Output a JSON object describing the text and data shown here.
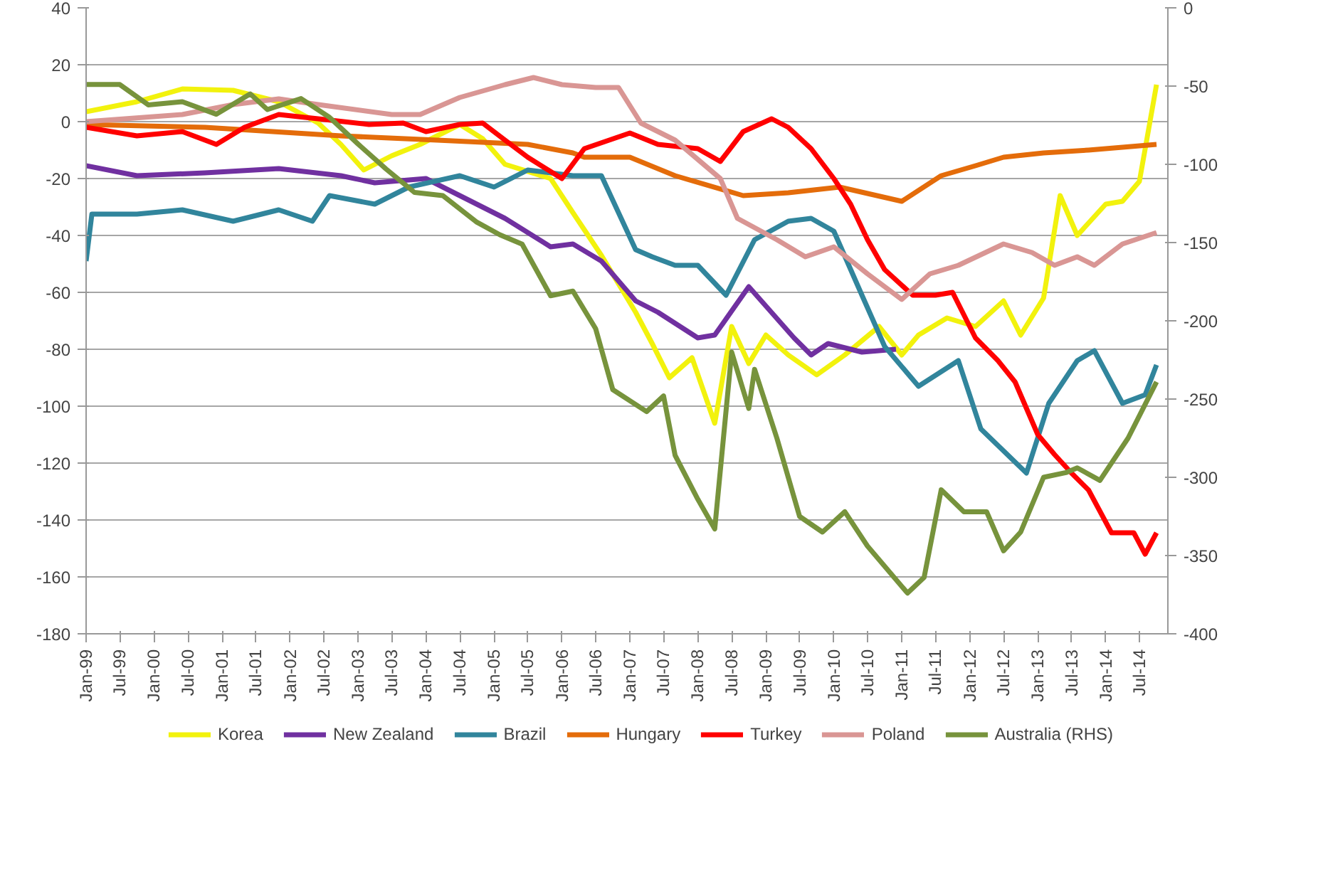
{
  "chart_data": {
    "type": "line",
    "ylim": [
      -180,
      40
    ],
    "yticks": [
      -180,
      -160,
      -140,
      -120,
      -100,
      -80,
      -60,
      -40,
      -20,
      0,
      20,
      40
    ],
    "y2lim": [
      -400,
      0
    ],
    "y2ticks": [
      -400,
      -350,
      -300,
      -250,
      -200,
      -150,
      -100,
      -50,
      0
    ],
    "xlim": [
      "1999-01",
      "2014-12"
    ],
    "xticks": [
      {
        "value": "1999-01",
        "label": "Jan-99"
      },
      {
        "value": "1999-07",
        "label": "Jul-99"
      },
      {
        "value": "2000-01",
        "label": "Jan-00"
      },
      {
        "value": "2000-07",
        "label": "Jul-00"
      },
      {
        "value": "2001-01",
        "label": "Jan-01"
      },
      {
        "value": "2001-07",
        "label": "Jul-01"
      },
      {
        "value": "2002-01",
        "label": "Jan-02"
      },
      {
        "value": "2002-07",
        "label": "Jul-02"
      },
      {
        "value": "2003-01",
        "label": "Jan-03"
      },
      {
        "value": "2003-07",
        "label": "Jul-03"
      },
      {
        "value": "2004-01",
        "label": "Jan-04"
      },
      {
        "value": "2004-07",
        "label": "Jul-04"
      },
      {
        "value": "2005-01",
        "label": "Jan-05"
      },
      {
        "value": "2005-07",
        "label": "Jul-05"
      },
      {
        "value": "2006-01",
        "label": "Jan-06"
      },
      {
        "value": "2006-07",
        "label": "Jul-06"
      },
      {
        "value": "2007-01",
        "label": "Jan-07"
      },
      {
        "value": "2007-07",
        "label": "Jul-07"
      },
      {
        "value": "2008-01",
        "label": "Jan-08"
      },
      {
        "value": "2008-07",
        "label": "Jul-08"
      },
      {
        "value": "2009-01",
        "label": "Jan-09"
      },
      {
        "value": "2009-07",
        "label": "Jul-09"
      },
      {
        "value": "2010-01",
        "label": "Jan-10"
      },
      {
        "value": "2010-07",
        "label": "Jul-10"
      },
      {
        "value": "2011-01",
        "label": "Jan-11"
      },
      {
        "value": "2011-07",
        "label": "Jul-11"
      },
      {
        "value": "2012-01",
        "label": "Jan-12"
      },
      {
        "value": "2012-07",
        "label": "Jul-12"
      },
      {
        "value": "2013-01",
        "label": "Jan-13"
      },
      {
        "value": "2013-07",
        "label": "Jul-13"
      },
      {
        "value": "2014-01",
        "label": "Jan-14"
      },
      {
        "value": "2014-07",
        "label": "Jul-14"
      }
    ],
    "grid": "y",
    "legend": "bottom",
    "line_style": "solid",
    "marker": "none",
    "series": [
      {
        "name": "Korea",
        "color": "#f2f20d",
        "x": [
          "1999-01",
          "1999-10",
          "2000-06",
          "2001-03",
          "2001-11",
          "2002-06",
          "2002-10",
          "2003-02",
          "2003-07",
          "2003-12",
          "2004-07",
          "2004-11",
          "2005-03",
          "2005-11",
          "2006-03",
          "2006-08",
          "2007-02",
          "2007-05",
          "2007-08",
          "2007-12",
          "2008-04",
          "2008-07",
          "2008-10",
          "2009-01",
          "2009-05",
          "2009-10",
          "2010-03",
          "2010-09",
          "2011-01",
          "2011-04",
          "2011-09",
          "2012-02",
          "2012-07",
          "2012-10",
          "2013-02",
          "2013-05",
          "2013-08",
          "2014-01",
          "2014-04",
          "2014-07",
          "2014-10"
        ],
        "values": [
          3.5,
          7,
          11.5,
          11,
          7,
          -0.5,
          -8,
          -17,
          -12,
          -8,
          -1,
          -6,
          -15,
          -20,
          -32,
          -47,
          -67,
          -78,
          -90,
          -83,
          -106,
          -72,
          -85,
          -75,
          -82,
          -89,
          -82,
          -72,
          -82,
          -75,
          -69,
          -72,
          -63,
          -75,
          -62,
          -26,
          -40,
          -29,
          -28,
          -21,
          13
        ]
      },
      {
        "name": "New Zealand",
        "color": "#7030a0",
        "x": [
          "1999-01",
          "1999-10",
          "2000-10",
          "2001-11",
          "2002-10",
          "2003-04",
          "2004-01",
          "2004-07",
          "2005-03",
          "2005-11",
          "2006-03",
          "2006-08",
          "2007-02",
          "2007-06",
          "2008-01",
          "2008-04",
          "2008-10",
          "2009-06",
          "2009-09",
          "2009-12",
          "2010-06",
          "2010-12"
        ],
        "values": [
          -15.5,
          -19,
          -18,
          -16.5,
          -19,
          -21.5,
          -20,
          -26,
          -34,
          -44,
          -43,
          -49,
          -63,
          -67,
          -76,
          -75,
          -58,
          -76,
          -82,
          -78,
          -81,
          -80
        ]
      },
      {
        "name": "Brazil",
        "color": "#31859c",
        "x": [
          "1999-01",
          "1999-02",
          "1999-10",
          "2000-06",
          "2001-03",
          "2001-11",
          "2002-05",
          "2002-08",
          "2003-04",
          "2003-10",
          "2004-07",
          "2005-01",
          "2005-07",
          "2006-03",
          "2006-08",
          "2007-02",
          "2007-05",
          "2007-09",
          "2008-01",
          "2008-06",
          "2008-11",
          "2009-05",
          "2009-09",
          "2010-01",
          "2010-06",
          "2010-10",
          "2011-04",
          "2011-11",
          "2012-03",
          "2012-11",
          "2013-03",
          "2013-08",
          "2013-11",
          "2014-04",
          "2014-08",
          "2014-10"
        ],
        "values": [
          -49,
          -32.5,
          -32.5,
          -31,
          -35,
          -31,
          -35,
          -26,
          -29,
          -23,
          -19,
          -23,
          -17,
          -19,
          -19,
          -45,
          -47.5,
          -50.5,
          -50.5,
          -61,
          -41.5,
          -35,
          -34,
          -38.5,
          -61,
          -79,
          -93,
          -84,
          -108,
          -123.5,
          -99,
          -84,
          -80.5,
          -99,
          -96,
          -85.5
        ]
      },
      {
        "name": "Hungary",
        "color": "#e46c0a",
        "x": [
          "1999-01",
          "2000-10",
          "2002-10",
          "2004-03",
          "2005-07",
          "2006-03",
          "2006-05",
          "2007-01",
          "2007-09",
          "2008-09",
          "2009-05",
          "2010-02",
          "2011-01",
          "2011-08",
          "2012-02",
          "2012-07",
          "2013-02",
          "2013-10",
          "2014-10"
        ],
        "values": [
          -1,
          -2,
          -5,
          -6.5,
          -8,
          -11,
          -12.5,
          -12.5,
          -19,
          -26,
          -25,
          -23,
          -28,
          -19,
          -15.5,
          -12.5,
          -11,
          -10,
          -8
        ]
      },
      {
        "name": "Turkey",
        "color": "#ff0000",
        "x": [
          "1999-01",
          "1999-10",
          "2000-06",
          "2000-12",
          "2001-05",
          "2001-11",
          "2002-06",
          "2003-03",
          "2003-09",
          "2004-01",
          "2004-07",
          "2004-11",
          "2005-03",
          "2005-07",
          "2006-01",
          "2006-05",
          "2007-01",
          "2007-06",
          "2008-01",
          "2008-05",
          "2008-09",
          "2009-02",
          "2009-05",
          "2009-09",
          "2010-01",
          "2010-04",
          "2010-07",
          "2010-10",
          "2011-03",
          "2011-07",
          "2011-10",
          "2012-02",
          "2012-06",
          "2012-09",
          "2013-01",
          "2013-04",
          "2013-07",
          "2013-10",
          "2014-02",
          "2014-06",
          "2014-08",
          "2014-10"
        ],
        "values": [
          -2,
          -5,
          -3.5,
          -8,
          -2,
          2.5,
          1,
          -1,
          -0.5,
          -3.5,
          -1,
          -0.5,
          -6.5,
          -12.5,
          -20,
          -9.5,
          -4,
          -8,
          -9.5,
          -14,
          -3.5,
          1,
          -2,
          -9.5,
          -20,
          -29,
          -41.5,
          -52,
          -61,
          -61,
          -60,
          -76,
          -84,
          -91.5,
          -110,
          -117,
          -123.5,
          -129.5,
          -144.5,
          -144.5,
          -152,
          -144.5
        ]
      },
      {
        "name": "Poland",
        "color": "#d99694",
        "x": [
          "1999-01",
          "2000-06",
          "2001-03",
          "2001-11",
          "2002-06",
          "2003-07",
          "2003-12",
          "2004-07",
          "2005-03",
          "2005-08",
          "2006-01",
          "2006-07",
          "2006-11",
          "2007-03",
          "2007-09",
          "2008-05",
          "2008-08",
          "2009-03",
          "2009-08",
          "2010-01",
          "2010-07",
          "2011-01",
          "2011-06",
          "2011-11",
          "2012-07",
          "2012-12",
          "2013-04",
          "2013-08",
          "2013-11",
          "2014-04",
          "2014-10"
        ],
        "values": [
          0,
          2.5,
          6,
          8,
          6,
          2.5,
          2.5,
          8.5,
          13,
          15.5,
          13,
          12,
          12,
          -0.5,
          -6.5,
          -20,
          -34,
          -41.5,
          -47.5,
          -44,
          -53.5,
          -62.5,
          -53.5,
          -50.5,
          -43,
          -46,
          -50.5,
          -47.5,
          -50.5,
          -43,
          -39
        ]
      },
      {
        "name": "Australia (RHS)",
        "color": "#77933c",
        "axis": "y2",
        "x": [
          "1999-01",
          "1999-07",
          "1999-12",
          "2000-06",
          "2000-12",
          "2001-06",
          "2001-09",
          "2002-03",
          "2002-08",
          "2003-01",
          "2003-06",
          "2003-11",
          "2004-04",
          "2004-10",
          "2005-02",
          "2005-06",
          "2005-11",
          "2006-03",
          "2006-07",
          "2006-10",
          "2007-04",
          "2007-07",
          "2007-09",
          "2008-01",
          "2008-04",
          "2008-07",
          "2008-10",
          "2008-11",
          "2009-03",
          "2009-07",
          "2009-11",
          "2010-03",
          "2010-07",
          "2011-02",
          "2011-05",
          "2011-08",
          "2011-12",
          "2012-04",
          "2012-07",
          "2012-10",
          "2013-02",
          "2013-06",
          "2013-08",
          "2013-12",
          "2014-05",
          "2014-10"
        ],
        "values": [
          -49,
          -49,
          -62,
          -60,
          -68,
          -55,
          -65,
          -58,
          -70,
          -87,
          -103,
          -118,
          -120,
          -137,
          -145,
          -151,
          -184,
          -181,
          -205,
          -244,
          -258,
          -248,
          -286,
          -314,
          -333,
          -220,
          -256,
          -231,
          -275,
          -325,
          -335,
          -322,
          -344,
          -374,
          -364,
          -308,
          -322,
          -322,
          -347,
          -335,
          -300,
          -297,
          -294,
          -302,
          -275,
          -239
        ]
      }
    ]
  }
}
